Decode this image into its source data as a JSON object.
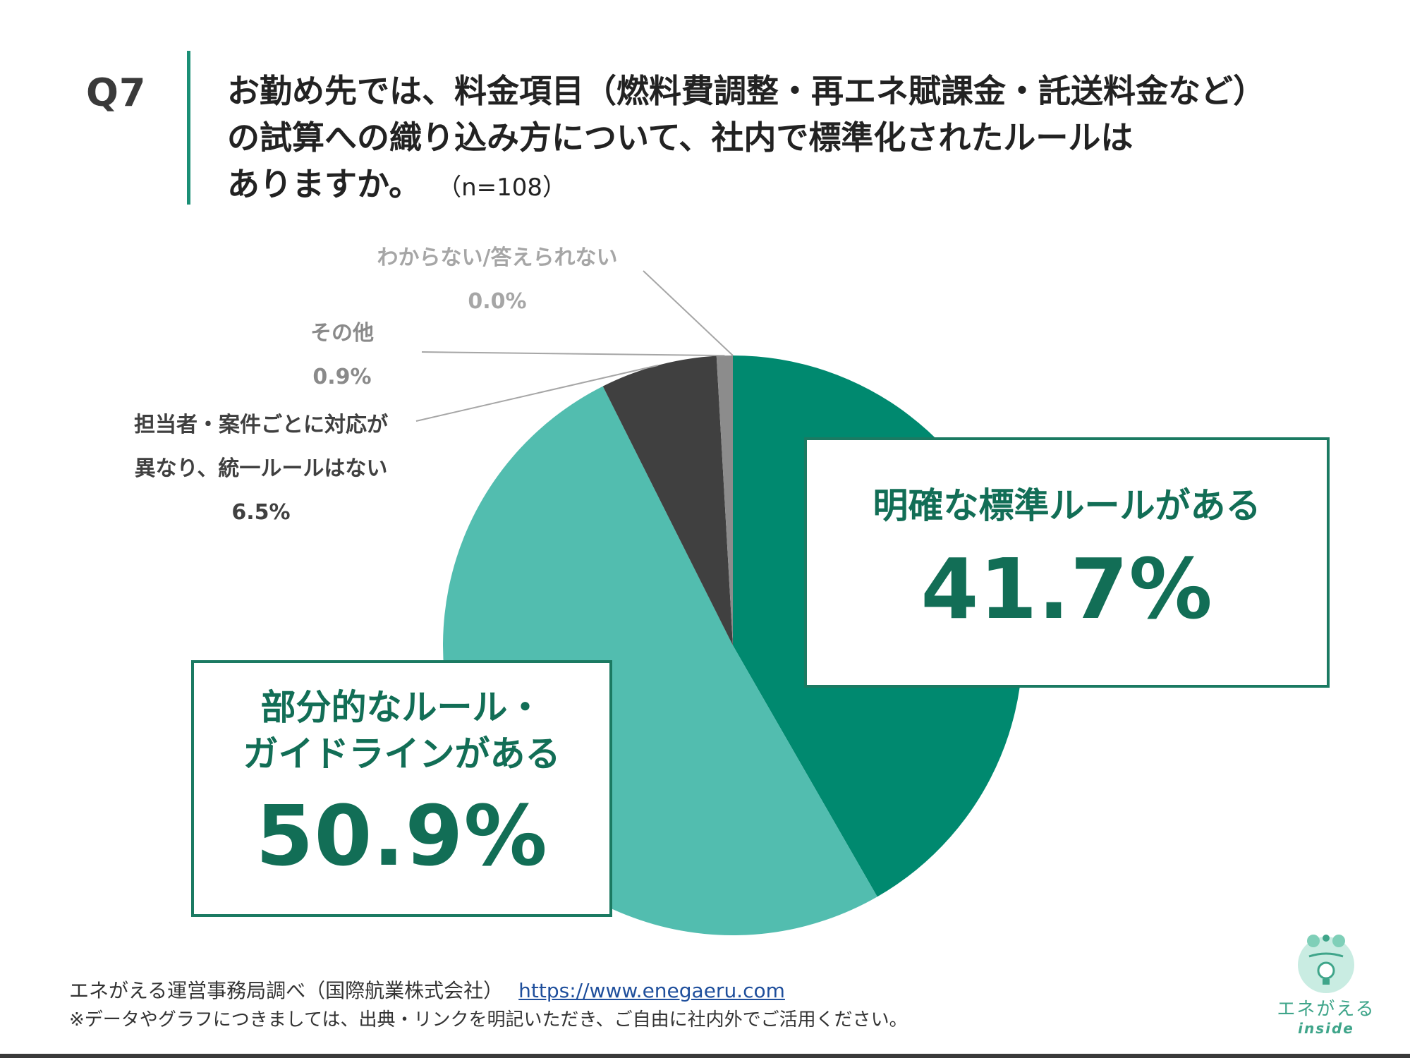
{
  "question": {
    "number": "Q7",
    "lines": [
      "お勤め先では、料金項目（燃料費調整・再エネ賦課金・託送料金など）",
      "の試算への織り込み方について、社内で標準化されたルールは",
      "ありますか。"
    ],
    "sample": "（n=108）"
  },
  "chart_data": {
    "type": "pie",
    "start_angle_deg": 0,
    "direction": "clockwise",
    "slices": [
      {
        "name": "明確な標準ルールがある",
        "label_lines": [
          "明確な標準ルールがある"
        ],
        "value": 41.7,
        "value_label": "41.7%",
        "color": "#00896f"
      },
      {
        "name": "部分的なルール・ガイドラインがある",
        "label_lines": [
          "部分的なルール・",
          "ガイドラインがある"
        ],
        "value": 50.9,
        "value_label": "50.9%",
        "color": "#52bdaf"
      },
      {
        "name": "担当者・案件ごとに対応が異なり、統一ルールはない",
        "label_lines": [
          "担当者・案件ごとに対応が",
          "異なり、統一ルールはない"
        ],
        "value": 6.5,
        "value_label": "6.5%",
        "color": "#404040"
      },
      {
        "name": "その他",
        "label_lines": [
          "その他"
        ],
        "value": 0.9,
        "value_label": "0.9%",
        "color": "#8c8c8c"
      },
      {
        "name": "わからない/答えられない",
        "label_lines": [
          "わからない/答えられない"
        ],
        "value": 0.0,
        "value_label": "0.0%",
        "color": "#bfbfbf"
      }
    ]
  },
  "footer": {
    "source": "エネがえる運営事務局調べ（国際航業株式会社）",
    "url": "https://www.enegaeru.com",
    "note": "※データやグラフにつきましては、出典・リンクを明記いただき、ご自由に社内外でご活用ください。"
  },
  "logo": {
    "brand": "エネがえる",
    "sub": "inside",
    "icon": "frog-bulb-icon",
    "color": "#3fa58a"
  }
}
